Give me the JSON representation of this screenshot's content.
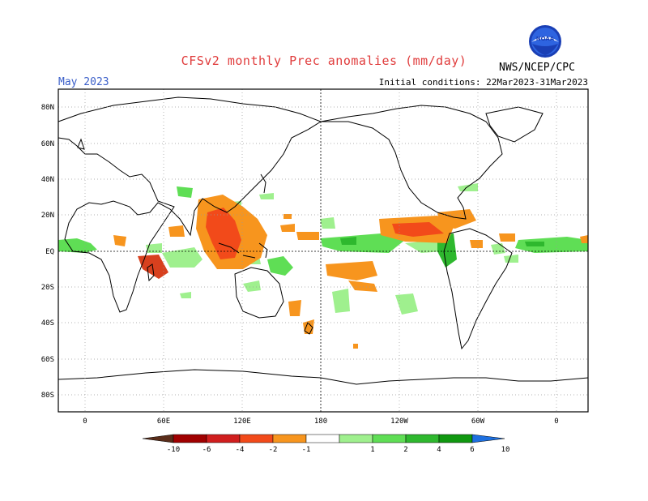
{
  "header": {
    "title": "CFSv2 monthly Prec anomalies (mm/day)",
    "month": "May 2023",
    "initial_conditions": "Initial conditions: 22Mar2023-31Mar2023",
    "agency": "NWS/NCEP/CPC",
    "logo_text": "NOAA"
  },
  "axes": {
    "lat_labels": [
      "80N",
      "60N",
      "40N",
      "20N",
      "EQ",
      "20S",
      "40S",
      "60S",
      "80S"
    ],
    "lon_labels": [
      "0",
      "60E",
      "120E",
      "180",
      "120W",
      "60W",
      "0"
    ]
  },
  "colorbar": {
    "labels": [
      "-10",
      "-6",
      "-4",
      "-2",
      "-1",
      "1",
      "2",
      "4",
      "6",
      "10"
    ],
    "colors": [
      "#5a2d1a",
      "#a00000",
      "#d01e1e",
      "#f24a1a",
      "#f7951e",
      "#ffffff",
      "#9ff08e",
      "#5fde55",
      "#2eb82e",
      "#109810",
      "#1e70e0"
    ]
  },
  "colors": {
    "dry_strong": "#d8401e",
    "dry": "#f7951e",
    "wet": "#5fde55",
    "wet_light": "#9ff08e",
    "wet_strong": "#2eb82e"
  }
}
